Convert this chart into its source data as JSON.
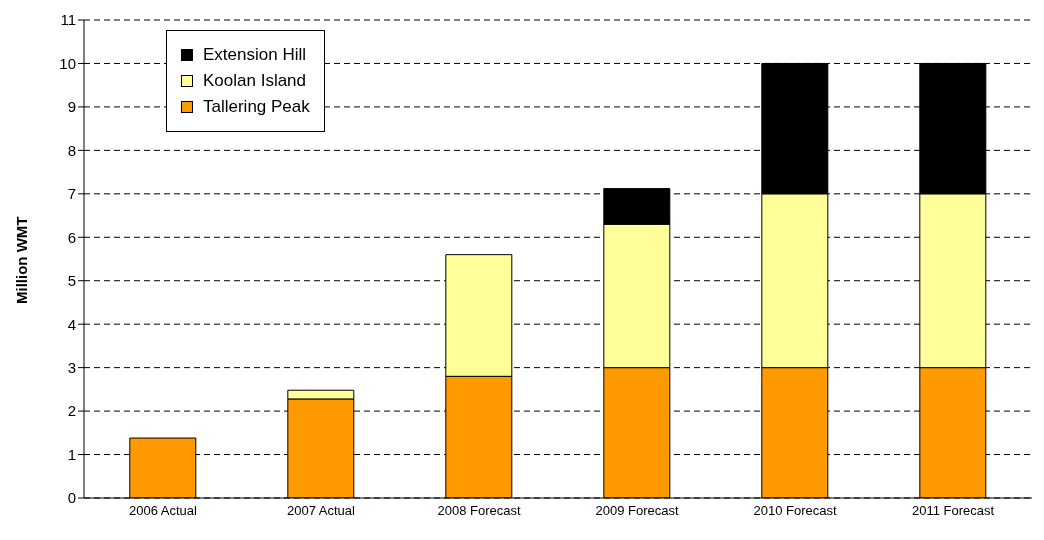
{
  "chart_data": {
    "type": "bar",
    "stacked": true,
    "ylabel": "Million WMT",
    "categories": [
      "2006 Actual",
      "2007 Actual",
      "2008 Forecast",
      "2009 Forecast",
      "2010 Forecast",
      "2011 Forecast"
    ],
    "series": [
      {
        "name": "Tallering Peak",
        "color": "#ff9900",
        "values": [
          1.38,
          2.28,
          2.8,
          3,
          3,
          3
        ]
      },
      {
        "name": "Koolan Island",
        "color": "#ffff99",
        "values": [
          null,
          0.2,
          2.8,
          3.3,
          4,
          4
        ]
      },
      {
        "name": "Extension Hill",
        "color": "#000000",
        "values": [
          null,
          null,
          null,
          0.82,
          3,
          3
        ]
      }
    ],
    "ylim": [
      0,
      11
    ],
    "yticks": [
      0,
      1,
      2,
      3,
      4,
      5,
      6,
      7,
      8,
      9,
      10,
      11
    ],
    "grid": "y",
    "legend": "top left"
  }
}
